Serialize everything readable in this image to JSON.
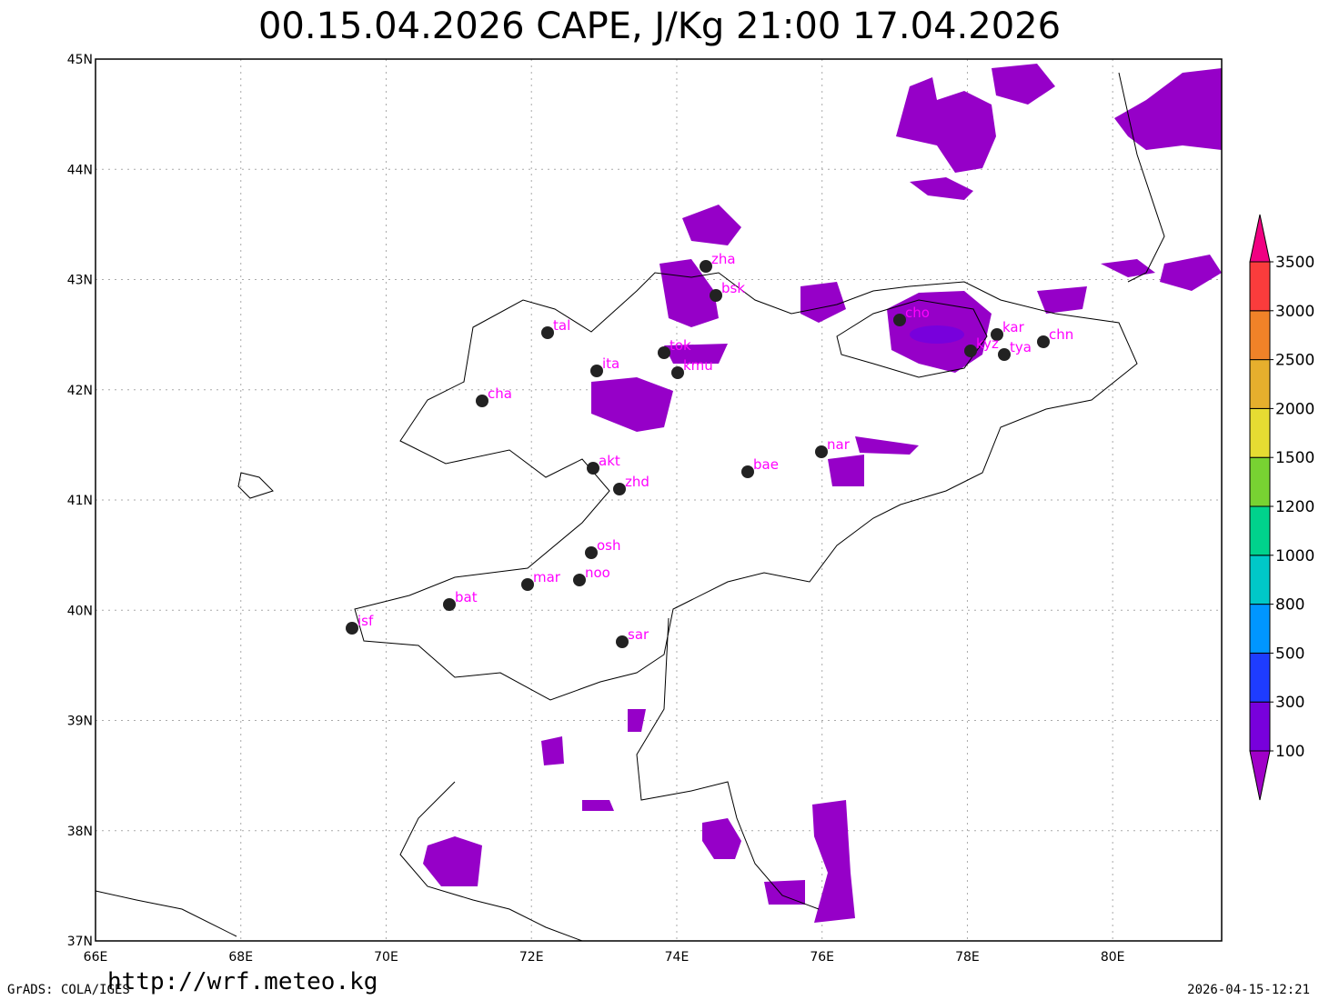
{
  "header": {
    "title": "00.15.04.2026 CAPE, J/Kg 21:00 17.04.2026"
  },
  "map": {
    "lon_ticks": [
      {
        "value": 66,
        "label": "66E"
      },
      {
        "value": 68,
        "label": "68E"
      },
      {
        "value": 70,
        "label": "70E"
      },
      {
        "value": 72,
        "label": "72E"
      },
      {
        "value": 74,
        "label": "74E"
      },
      {
        "value": 76,
        "label": "76E"
      },
      {
        "value": 78,
        "label": "78E"
      },
      {
        "value": 80,
        "label": "80E"
      }
    ],
    "lat_ticks": [
      {
        "value": 37,
        "label": "37N"
      },
      {
        "value": 38,
        "label": "38N"
      },
      {
        "value": 39,
        "label": "39N"
      },
      {
        "value": 40,
        "label": "40N"
      },
      {
        "value": 41,
        "label": "41N"
      },
      {
        "value": 42,
        "label": "42N"
      },
      {
        "value": 43,
        "label": "43N"
      },
      {
        "value": 44,
        "label": "44N"
      },
      {
        "value": 45,
        "label": "45N"
      }
    ],
    "cities": [
      "zha",
      "bsk",
      "tal",
      "tok",
      "kmu",
      "ita",
      "cha",
      "akt",
      "zhd",
      "bae",
      "nar",
      "cho",
      "kar",
      "kyz",
      "tya",
      "chn",
      "osh",
      "noo",
      "mar",
      "bat",
      "isf",
      "sar"
    ]
  },
  "colorbar": {
    "levels": [
      100,
      300,
      500,
      800,
      1000,
      1200,
      1500,
      2000,
      2500,
      3000,
      3500
    ],
    "colors": [
      "#a000c8",
      "#7800dc",
      "#1e3cff",
      "#0096ff",
      "#00c8c8",
      "#00d28c",
      "#78d232",
      "#e6dc32",
      "#e6af2d",
      "#f08228",
      "#fa3c3c",
      "#f00082"
    ]
  },
  "footer": {
    "left": "GrADS: COLA/IGES",
    "url": "http://wrf.meteo.kg",
    "right": "2026-04-15-12:21"
  }
}
